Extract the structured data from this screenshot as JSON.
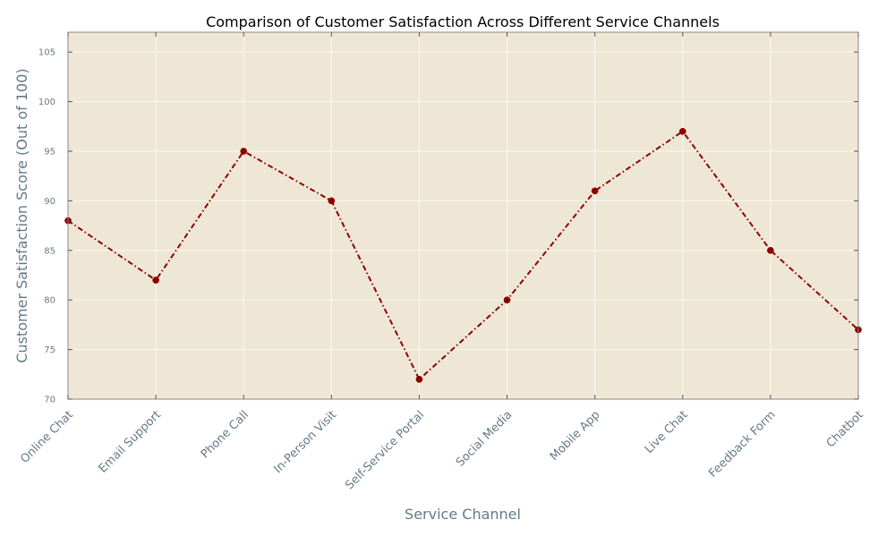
{
  "chart_data": {
    "type": "line",
    "title": "Comparison of Customer Satisfaction Across Different Service Channels",
    "xlabel": "Service Channel",
    "ylabel": "Customer Satisfaction Score (Out of 100)",
    "categories": [
      "Online Chat",
      "Email Support",
      "Phone Call",
      "In-Person Visit",
      "Self-Service Portal",
      "Social Media",
      "Mobile App",
      "Live Chat",
      "Feedback Form",
      "Chatbot"
    ],
    "series": [
      {
        "values": [
          88,
          82,
          95,
          90,
          72,
          80,
          91,
          97,
          85,
          77
        ]
      }
    ],
    "ylim": [
      70,
      107
    ],
    "yticks": [
      70,
      75,
      80,
      85,
      90,
      95,
      100,
      105
    ],
    "ytick_labels": [
      "70",
      "75",
      "80",
      "85",
      "90",
      "95",
      "100",
      "105"
    ],
    "grid": true,
    "line_style": "dash-dot",
    "marker": "circle"
  },
  "colors": {
    "plot_background": "#efe7d5",
    "grid": "#fbf8f0",
    "line": "#8b0000",
    "marker": "#8b0000",
    "axis_text": "#637b88",
    "spine": "#8a8a8a"
  }
}
